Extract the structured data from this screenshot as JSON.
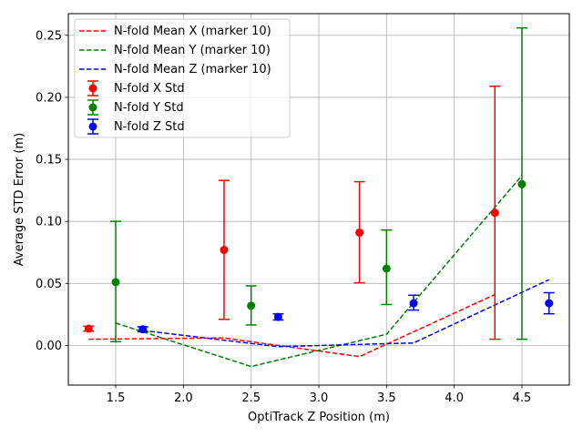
{
  "chart_data": {
    "type": "scatter",
    "title": "",
    "xlabel": "OptiTrack Z Position (m)",
    "ylabel": "Average STD Error (m)",
    "xlim": [
      1.15,
      4.85
    ],
    "ylim": [
      -0.032,
      0.2675
    ],
    "xticks": [
      1.5,
      2.0,
      2.5,
      3.0,
      3.5,
      4.0,
      4.5
    ],
    "xtick_labels": [
      "1.5",
      "2.0",
      "2.5",
      "3.0",
      "3.5",
      "4.0",
      "4.5"
    ],
    "yticks": [
      0.0,
      0.05,
      0.1,
      0.15,
      0.2,
      0.25
    ],
    "ytick_labels": [
      "0.00",
      "0.05",
      "0.10",
      "0.15",
      "0.20",
      "0.25"
    ],
    "grid": true,
    "legend_position": "upper-left",
    "colors": {
      "x": "#ff0000",
      "y": "#008000",
      "z": "#0000ff"
    },
    "lines": [
      {
        "name": "N-fold Mean X (marker 10)",
        "color": "#ff0000",
        "style": "dashed",
        "x": [
          1.3,
          2.3,
          3.3,
          4.3
        ],
        "y": [
          0.005,
          0.006,
          -0.009,
          0.041
        ]
      },
      {
        "name": "N-fold Mean Y (marker 10)",
        "color": "#008000",
        "style": "dashed",
        "x": [
          1.5,
          2.5,
          3.5,
          4.5
        ],
        "y": [
          0.018,
          -0.017,
          0.009,
          0.137
        ]
      },
      {
        "name": "N-fold Mean Z (marker 10)",
        "color": "#0000ff",
        "style": "dashed",
        "x": [
          1.7,
          2.7,
          3.7,
          4.7
        ],
        "y": [
          0.012,
          -0.001,
          0.002,
          0.053
        ]
      }
    ],
    "errorbars": [
      {
        "name": "N-fold X Std",
        "color": "#ff0000",
        "x": [
          1.3,
          2.3,
          3.3,
          4.3
        ],
        "y": [
          0.0135,
          0.077,
          0.091,
          0.107
        ],
        "lower": [
          0.0115,
          0.021,
          0.0505,
          0.005
        ],
        "upper": [
          0.0155,
          0.133,
          0.132,
          0.209
        ]
      },
      {
        "name": "N-fold Y Std",
        "color": "#008000",
        "x": [
          1.5,
          2.5,
          3.5,
          4.5
        ],
        "y": [
          0.051,
          0.032,
          0.062,
          0.13
        ],
        "lower": [
          0.003,
          0.0165,
          0.033,
          0.005
        ],
        "upper": [
          0.1,
          0.048,
          0.093,
          0.256
        ]
      },
      {
        "name": "N-fold Z Std",
        "color": "#0000ff",
        "x": [
          1.7,
          2.7,
          3.7,
          4.7
        ],
        "y": [
          0.013,
          0.023,
          0.034,
          0.034
        ],
        "lower": [
          0.011,
          0.0205,
          0.0285,
          0.0255
        ],
        "upper": [
          0.015,
          0.0255,
          0.0405,
          0.0425
        ]
      }
    ]
  }
}
